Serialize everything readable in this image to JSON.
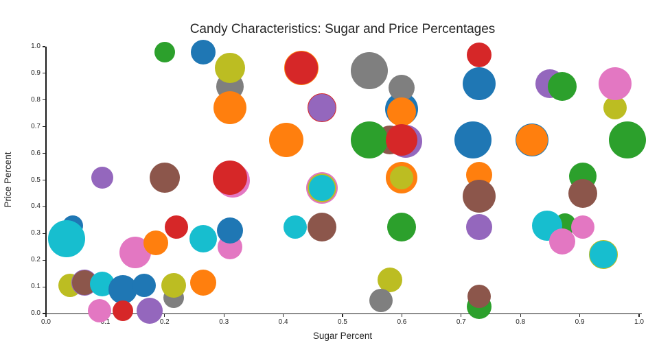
{
  "chart_data": {
    "type": "scatter",
    "title": "Candy Characteristics: Sugar and Price Percentages",
    "xlabel": "Sugar Percent",
    "ylabel": "Price Percent",
    "xlim": [
      0.0,
      1.0
    ],
    "ylim": [
      0.0,
      1.0
    ],
    "grid": false,
    "legend": "none",
    "xticks": [
      "0.0",
      "0.1",
      "0.2",
      "0.3",
      "0.4",
      "0.5",
      "0.6",
      "0.7",
      "0.8",
      "0.9",
      "1.0"
    ],
    "yticks": [
      "0.0",
      "0.1",
      "0.2",
      "0.3",
      "0.4",
      "0.5",
      "0.6",
      "0.7",
      "0.8",
      "0.9",
      "1.0"
    ],
    "palette": {
      "blue": "#1f77b4",
      "orange": "#ff7f0e",
      "green": "#2ca02c",
      "red": "#d62728",
      "purple": "#9467bd",
      "brown": "#8c564b",
      "pink": "#e377c2",
      "gray": "#7f7f7f",
      "olive": "#bcbd22",
      "cyan": "#17becf"
    },
    "text_color": "#262626",
    "spine_color": "#1a1a1a",
    "points": [
      {
        "x": 0.2,
        "y": 0.98,
        "r": 15,
        "color": "green"
      },
      {
        "x": 0.265,
        "y": 0.98,
        "r": 18,
        "color": "blue"
      },
      {
        "x": 0.31,
        "y": 0.85,
        "r": 20,
        "color": "gray"
      },
      {
        "x": 0.31,
        "y": 0.92,
        "r": 22,
        "color": "olive"
      },
      {
        "x": 0.31,
        "y": 0.77,
        "r": 24,
        "color": "orange"
      },
      {
        "x": 0.43,
        "y": 0.92,
        "r": 25,
        "color": "red",
        "edge": "orange"
      },
      {
        "x": 0.545,
        "y": 0.91,
        "r": 27,
        "color": "gray"
      },
      {
        "x": 0.465,
        "y": 0.77,
        "r": 21,
        "color": "purple",
        "edge": "red"
      },
      {
        "x": 0.6,
        "y": 0.765,
        "r": 24,
        "color": "blue"
      },
      {
        "x": 0.6,
        "y": 0.845,
        "r": 19,
        "color": "gray"
      },
      {
        "x": 0.6,
        "y": 0.755,
        "r": 21,
        "color": "orange"
      },
      {
        "x": 0.73,
        "y": 0.97,
        "r": 18,
        "color": "red"
      },
      {
        "x": 0.73,
        "y": 0.86,
        "r": 24,
        "color": "blue"
      },
      {
        "x": 0.85,
        "y": 0.86,
        "r": 21,
        "color": "purple"
      },
      {
        "x": 0.87,
        "y": 0.85,
        "r": 21,
        "color": "green"
      },
      {
        "x": 0.96,
        "y": 0.77,
        "r": 17,
        "color": "olive"
      },
      {
        "x": 0.96,
        "y": 0.86,
        "r": 24,
        "color": "pink"
      },
      {
        "x": 0.405,
        "y": 0.65,
        "r": 25,
        "color": "orange"
      },
      {
        "x": 0.58,
        "y": 0.65,
        "r": 21,
        "color": "brown"
      },
      {
        "x": 0.607,
        "y": 0.645,
        "r": 24,
        "color": "purple"
      },
      {
        "x": 0.545,
        "y": 0.65,
        "r": 27,
        "color": "green"
      },
      {
        "x": 0.6,
        "y": 0.65,
        "r": 23,
        "color": "red"
      },
      {
        "x": 0.72,
        "y": 0.65,
        "r": 27,
        "color": "blue"
      },
      {
        "x": 0.82,
        "y": 0.65,
        "r": 24,
        "color": "orange",
        "edge": "blue"
      },
      {
        "x": 0.98,
        "y": 0.65,
        "r": 27,
        "color": "green"
      },
      {
        "x": 0.095,
        "y": 0.51,
        "r": 16,
        "color": "purple"
      },
      {
        "x": 0.2,
        "y": 0.51,
        "r": 22,
        "color": "brown"
      },
      {
        "x": 0.315,
        "y": 0.5,
        "r": 25,
        "color": "pink"
      },
      {
        "x": 0.31,
        "y": 0.51,
        "r": 25,
        "color": "red"
      },
      {
        "x": 0.6,
        "y": 0.51,
        "r": 23,
        "color": "orange"
      },
      {
        "x": 0.6,
        "y": 0.51,
        "r": 17,
        "color": "olive"
      },
      {
        "x": 0.73,
        "y": 0.52,
        "r": 19,
        "color": "orange"
      },
      {
        "x": 0.73,
        "y": 0.44,
        "r": 24,
        "color": "brown"
      },
      {
        "x": 0.905,
        "y": 0.515,
        "r": 20,
        "color": "green"
      },
      {
        "x": 0.905,
        "y": 0.45,
        "r": 21,
        "color": "brown"
      },
      {
        "x": 0.465,
        "y": 0.47,
        "r": 23,
        "color": "pink"
      },
      {
        "x": 0.465,
        "y": 0.47,
        "r": 21,
        "color": "olive"
      },
      {
        "x": 0.465,
        "y": 0.47,
        "r": 19,
        "color": "cyan"
      },
      {
        "x": 0.045,
        "y": 0.33,
        "r": 15,
        "color": "blue"
      },
      {
        "x": 0.035,
        "y": 0.28,
        "r": 27,
        "color": "cyan"
      },
      {
        "x": 0.15,
        "y": 0.23,
        "r": 23,
        "color": "pink"
      },
      {
        "x": 0.22,
        "y": 0.325,
        "r": 17,
        "color": "red"
      },
      {
        "x": 0.185,
        "y": 0.265,
        "r": 18,
        "color": "orange"
      },
      {
        "x": 0.265,
        "y": 0.28,
        "r": 20,
        "color": "cyan"
      },
      {
        "x": 0.31,
        "y": 0.25,
        "r": 18,
        "color": "pink"
      },
      {
        "x": 0.31,
        "y": 0.31,
        "r": 19,
        "color": "blue"
      },
      {
        "x": 0.42,
        "y": 0.325,
        "r": 17,
        "color": "cyan"
      },
      {
        "x": 0.465,
        "y": 0.325,
        "r": 21,
        "color": "brown"
      },
      {
        "x": 0.6,
        "y": 0.325,
        "r": 21,
        "color": "green"
      },
      {
        "x": 0.73,
        "y": 0.325,
        "r": 19,
        "color": "purple"
      },
      {
        "x": 0.875,
        "y": 0.335,
        "r": 16,
        "color": "green"
      },
      {
        "x": 0.845,
        "y": 0.33,
        "r": 22,
        "color": "cyan"
      },
      {
        "x": 0.87,
        "y": 0.27,
        "r": 19,
        "color": "pink"
      },
      {
        "x": 0.905,
        "y": 0.325,
        "r": 17,
        "color": "pink"
      },
      {
        "x": 0.94,
        "y": 0.22,
        "r": 21,
        "color": "cyan",
        "edge": "olive"
      },
      {
        "x": 0.04,
        "y": 0.105,
        "r": 17,
        "color": "olive"
      },
      {
        "x": 0.065,
        "y": 0.115,
        "r": 19,
        "color": "brown",
        "edge": "purple"
      },
      {
        "x": 0.095,
        "y": 0.11,
        "r": 18,
        "color": "cyan"
      },
      {
        "x": 0.13,
        "y": 0.09,
        "r": 21,
        "color": "blue"
      },
      {
        "x": 0.165,
        "y": 0.105,
        "r": 17,
        "color": "blue"
      },
      {
        "x": 0.215,
        "y": 0.06,
        "r": 15,
        "color": "gray"
      },
      {
        "x": 0.215,
        "y": 0.105,
        "r": 18,
        "color": "olive"
      },
      {
        "x": 0.265,
        "y": 0.115,
        "r": 19,
        "color": "orange"
      },
      {
        "x": 0.58,
        "y": 0.125,
        "r": 18,
        "color": "olive"
      },
      {
        "x": 0.565,
        "y": 0.05,
        "r": 17,
        "color": "gray"
      },
      {
        "x": 0.73,
        "y": 0.025,
        "r": 18,
        "color": "green"
      },
      {
        "x": 0.73,
        "y": 0.065,
        "r": 17,
        "color": "brown"
      },
      {
        "x": 0.09,
        "y": 0.01,
        "r": 17,
        "color": "pink"
      },
      {
        "x": 0.13,
        "y": 0.01,
        "r": 15,
        "color": "red"
      },
      {
        "x": 0.175,
        "y": 0.01,
        "r": 19,
        "color": "purple"
      }
    ]
  }
}
